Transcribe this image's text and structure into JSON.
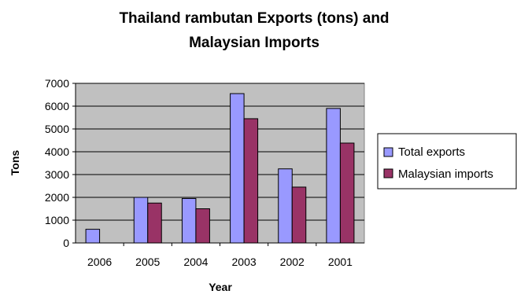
{
  "chart_data": {
    "type": "bar",
    "title_lines": [
      "Thailand rambutan Exports (tons) and",
      "Malaysian Imports"
    ],
    "xlabel": "Year",
    "ylabel": "Tons",
    "categories": [
      "2006",
      "2005",
      "2004",
      "2003",
      "2002",
      "2001"
    ],
    "series": [
      {
        "name": "Total exports",
        "color": "#9999ff",
        "values": [
          600,
          2000,
          1950,
          6550,
          3250,
          5900
        ]
      },
      {
        "name": "Malaysian imports",
        "color": "#993366",
        "values": [
          null,
          1750,
          1500,
          5450,
          2450,
          4380
        ]
      }
    ],
    "ylim": [
      0,
      7000
    ],
    "yticks": [
      "0",
      "1000",
      "2000",
      "3000",
      "4000",
      "5000",
      "6000",
      "7000"
    ],
    "plot_background": "#c0c0c0",
    "grid": true,
    "legend_position": "right"
  }
}
